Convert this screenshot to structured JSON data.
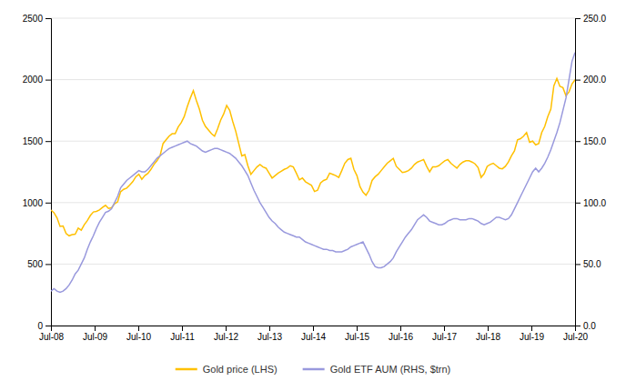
{
  "chart_data": {
    "type": "line",
    "x": [
      0,
      0.0694,
      0.1387,
      0.2081,
      0.2775,
      0.3468,
      0.4162,
      0.4855,
      0.5549,
      0.6243,
      0.6936,
      0.763,
      0.8324,
      0.9017,
      0.9711,
      1.0405,
      1.1098,
      1.1792,
      1.2486,
      1.3179,
      1.3873,
      1.4566,
      1.526,
      1.5954,
      1.6647,
      1.7341,
      1.8035,
      1.8728,
      1.9422,
      2.0116,
      2.0809,
      2.1503,
      2.2197,
      2.289,
      2.3584,
      2.4277,
      2.4971,
      2.5665,
      2.6358,
      2.7052,
      2.7746,
      2.8439,
      2.9133,
      2.9827,
      3.052,
      3.1214,
      3.1908,
      3.2601,
      3.3295,
      3.3988,
      3.4682,
      3.5376,
      3.6069,
      3.6763,
      3.7457,
      3.815,
      3.8844,
      3.9538,
      4.0231,
      4.0925,
      4.1618,
      4.2312,
      4.3006,
      4.3699,
      4.4393,
      4.5087,
      4.578,
      4.6474,
      4.7168,
      4.7861,
      4.8555,
      4.9249,
      4.9942,
      5.0636,
      5.1329,
      5.2023,
      5.2717,
      5.341,
      5.4104,
      5.4798,
      5.5491,
      5.6185,
      5.6879,
      5.7572,
      5.8266,
      5.896,
      5.9653,
      6.0347,
      6.104,
      6.1734,
      6.2428,
      6.3121,
      6.3815,
      6.4509,
      6.5202,
      6.5896,
      6.659,
      6.7283,
      6.7977,
      6.8671,
      6.9364,
      7.0058,
      7.0751,
      7.1445,
      7.2139,
      7.2832,
      7.3526,
      7.422,
      7.4913,
      7.5607,
      7.6301,
      7.6994,
      7.7688,
      7.8382,
      7.9075,
      7.9769,
      8.0462,
      8.1156,
      8.185,
      8.2543,
      8.3237,
      8.3931,
      8.4624,
      8.5318,
      8.6012,
      8.6705,
      8.7399,
      8.8092,
      8.8786,
      8.948,
      9.0173,
      9.0867,
      9.1561,
      9.2254,
      9.2948,
      9.3642,
      9.4335,
      9.5029,
      9.5723,
      9.6416,
      9.711,
      9.7803,
      9.8497,
      9.9191,
      9.9884,
      10.0578,
      10.1272,
      10.1965,
      10.2659,
      10.3353,
      10.4046,
      10.474,
      10.5434,
      10.6127,
      10.6821,
      10.7514,
      10.8208,
      10.8902,
      10.9595,
      11.0289,
      11.0983,
      11.1676,
      11.237,
      11.3064,
      11.3757,
      11.4451,
      11.5145,
      11.5838,
      11.6532,
      11.7225,
      11.7919,
      11.8613,
      11.9306,
      12
    ],
    "xlim": [
      0,
      12
    ],
    "xticks": [
      {
        "value": 0,
        "label": "Jul-08"
      },
      {
        "value": 1,
        "label": "Jul-09"
      },
      {
        "value": 2,
        "label": "Jul-10"
      },
      {
        "value": 3,
        "label": "Jul-11"
      },
      {
        "value": 4,
        "label": "Jul-12"
      },
      {
        "value": 5,
        "label": "Jul-13"
      },
      {
        "value": 6,
        "label": "Jul-14"
      },
      {
        "value": 7,
        "label": "Jul-15"
      },
      {
        "value": 8,
        "label": "Jul-16"
      },
      {
        "value": 9,
        "label": "Jul-17"
      },
      {
        "value": 10,
        "label": "Jul-18"
      },
      {
        "value": 11,
        "label": "Jul-19"
      },
      {
        "value": 12,
        "label": "Jul-20"
      }
    ],
    "ylim": [
      0,
      2500
    ],
    "yticks": [
      0,
      500,
      1000,
      1500,
      2000,
      2500
    ],
    "y2lim": [
      0.0,
      250.0
    ],
    "y2ticks": [
      {
        "value": 0,
        "label": "0.0"
      },
      {
        "value": 50,
        "label": "50.0"
      },
      {
        "value": 100,
        "label": "100.0"
      },
      {
        "value": 150,
        "label": "150.0"
      },
      {
        "value": 200,
        "label": "200.0"
      },
      {
        "value": 250,
        "label": "250.0"
      }
    ],
    "grid": true,
    "legend": "bottom",
    "series": [
      {
        "name": "Gold price (LHS)",
        "color": "#FFC000",
        "values": [
          939,
          918,
          876,
          806,
          810,
          748,
          730,
          740,
          743,
          792,
          775,
          820,
          853,
          895,
          924,
          928,
          940,
          960,
          978,
          952,
          958,
          990,
          1005,
          1088,
          1108,
          1118,
          1143,
          1170,
          1210,
          1230,
          1190,
          1220,
          1238,
          1270,
          1310,
          1340,
          1380,
          1480,
          1510,
          1540,
          1560,
          1560,
          1615,
          1650,
          1700,
          1780,
          1850,
          1910,
          1830,
          1760,
          1670,
          1620,
          1590,
          1560,
          1540,
          1600,
          1670,
          1720,
          1790,
          1750,
          1660,
          1580,
          1480,
          1380,
          1390,
          1300,
          1230,
          1260,
          1290,
          1310,
          1290,
          1280,
          1240,
          1200,
          1220,
          1240,
          1255,
          1270,
          1280,
          1300,
          1290,
          1240,
          1185,
          1200,
          1170,
          1155,
          1140,
          1090,
          1100,
          1160,
          1180,
          1190,
          1240,
          1230,
          1220,
          1205,
          1260,
          1320,
          1350,
          1360,
          1270,
          1220,
          1130,
          1085,
          1060,
          1100,
          1180,
          1210,
          1230,
          1260,
          1290,
          1320,
          1340,
          1360,
          1295,
          1270,
          1245,
          1250,
          1260,
          1280,
          1310,
          1330,
          1340,
          1350,
          1295,
          1250,
          1290,
          1290,
          1300,
          1320,
          1340,
          1350,
          1320,
          1300,
          1280,
          1310,
          1330,
          1340,
          1340,
          1330,
          1315,
          1285,
          1205,
          1235,
          1295,
          1310,
          1320,
          1300,
          1280,
          1275,
          1295,
          1330,
          1380,
          1420,
          1510,
          1520,
          1540,
          1570,
          1490,
          1500,
          1470,
          1480,
          1570,
          1620,
          1700,
          1760,
          1950,
          2010,
          1945,
          1935,
          1870,
          1900,
          1965,
          2000
        ]
      },
      {
        "name": "Gold ETF AUM (RHS, $trn)",
        "color": "#9999DD",
        "axis": "y2",
        "values": [
          28,
          30,
          28,
          27,
          28,
          30,
          33,
          37,
          42,
          45,
          50,
          55,
          62,
          68,
          73,
          79,
          84,
          88,
          92,
          93,
          95,
          100,
          105,
          112,
          115,
          118,
          120,
          122,
          124,
          126,
          125,
          125,
          127,
          130,
          133,
          136,
          138,
          140,
          142,
          144,
          145,
          146,
          147,
          148,
          149,
          150,
          148,
          147,
          146,
          144,
          142,
          141,
          142,
          143,
          144,
          144,
          143,
          142,
          141,
          140,
          138,
          136,
          133,
          130,
          126,
          122,
          116,
          110,
          105,
          100,
          96,
          92,
          88,
          85,
          83,
          80,
          78,
          76,
          75,
          74,
          73,
          72,
          72,
          70,
          68,
          67,
          66,
          65,
          64,
          63,
          62,
          62,
          61,
          61,
          60,
          60,
          60,
          61,
          62,
          64,
          65,
          66,
          67,
          68,
          63,
          58,
          52,
          48,
          47,
          47,
          48,
          50,
          52,
          55,
          60,
          64,
          68,
          72,
          75,
          78,
          82,
          86,
          88,
          90,
          88,
          85,
          84,
          83,
          82,
          82,
          83,
          85,
          86,
          87,
          87,
          86,
          86,
          86,
          87,
          87,
          86,
          85,
          83,
          82,
          83,
          84,
          86,
          88,
          88,
          87,
          86,
          87,
          90,
          95,
          100,
          105,
          110,
          115,
          120,
          125,
          128,
          125,
          128,
          132,
          137,
          143,
          150,
          157,
          165,
          175,
          185,
          200,
          215,
          222
        ]
      }
    ]
  }
}
